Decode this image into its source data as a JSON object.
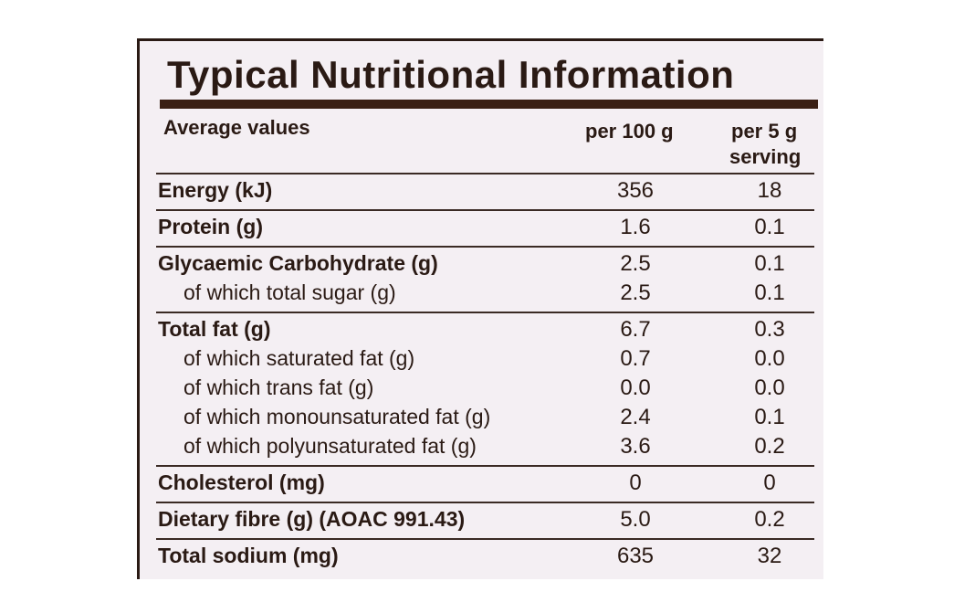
{
  "label": {
    "title": "Typical Nutritional Information",
    "header": {
      "label": "Average values",
      "per100": "per 100 g",
      "per5": [
        "per 5 g",
        "serving"
      ]
    },
    "groups": [
      {
        "rows": [
          [
            "Energy (kJ)",
            "356",
            "18"
          ]
        ]
      },
      {
        "rows": [
          [
            "Protein (g)",
            "1.6",
            "0.1"
          ]
        ]
      },
      {
        "rows": [
          [
            "Glycaemic Carbohydrate (g)",
            "2.5",
            "0.1"
          ],
          [
            "of which total sugar (g)",
            "2.5",
            "0.1"
          ]
        ]
      },
      {
        "rows": [
          [
            "Total fat (g)",
            "6.7",
            "0.3"
          ],
          [
            "of which saturated fat (g)",
            "0.7",
            "0.0"
          ],
          [
            "of which trans fat (g)",
            "0.0",
            "0.0"
          ],
          [
            "of which monounsaturated fat (g)",
            "2.4",
            "0.1"
          ],
          [
            "of which polyunsaturated fat (g)",
            "3.6",
            "0.2"
          ]
        ]
      },
      {
        "rows": [
          [
            "Cholesterol (mg)",
            "0",
            "0"
          ]
        ]
      },
      {
        "rows": [
          [
            "Dietary fibre (g) (AOAC 991.43)",
            "5.0",
            "0.2"
          ]
        ]
      },
      {
        "rows": [
          [
            "Total sodium (mg)",
            "635",
            "32"
          ]
        ]
      }
    ]
  }
}
